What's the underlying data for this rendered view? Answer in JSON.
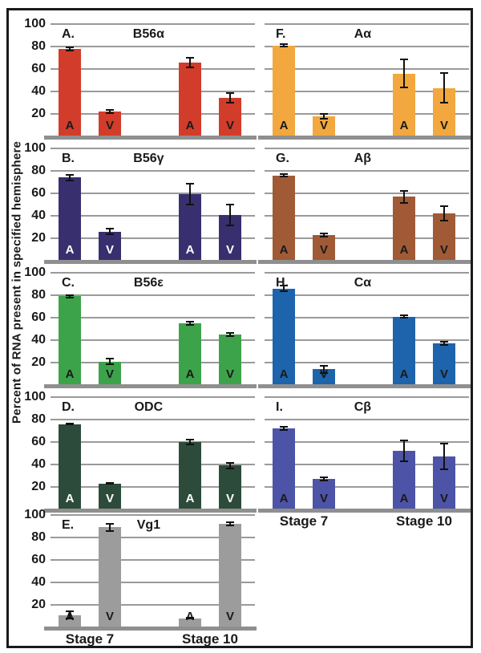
{
  "figure": {
    "ylabel": "Percent of RNA present in specified hemisphere",
    "background": "#ffffff",
    "border_color": "#1a1a1a",
    "gridline_color": "#9a9a9a",
    "baseline_color": "#8f8f8f",
    "error_bar_color": "#111111",
    "text_color": "#1a1a1a"
  },
  "chart_data": {
    "type": "bar",
    "title": "Percent of RNA present in specified hemisphere",
    "ylabel": "Percent of RNA present in specified hemisphere",
    "ylim": [
      0,
      100
    ],
    "y_ticks": [
      100,
      80,
      60,
      40,
      20
    ],
    "grid": true,
    "x_groups": [
      "Stage 7",
      "Stage 10"
    ],
    "bar_labels": [
      "A",
      "V",
      "A",
      "V"
    ],
    "categories": [
      "Stage 7 A",
      "Stage 7 V",
      "Stage 10 A",
      "Stage 10 V"
    ],
    "panels": [
      {
        "letter": "A.",
        "title": "B56α",
        "color": "#d23c2a",
        "bar_label_color": "#1a1a1a",
        "column": 0,
        "row": 0,
        "values": [
          78,
          22,
          66,
          34
        ],
        "errors": [
          2,
          2,
          5,
          5
        ],
        "show_y_ticks": true,
        "show_stage_labels": false
      },
      {
        "letter": "B.",
        "title": "B56γ",
        "color": "#38306e",
        "bar_label_color": "#ffffff",
        "column": 0,
        "row": 1,
        "values": [
          74,
          26,
          59,
          41
        ],
        "errors": [
          3,
          3,
          10,
          10
        ],
        "show_y_ticks": true,
        "show_stage_labels": false
      },
      {
        "letter": "C.",
        "title": "B56ε",
        "color": "#3da34a",
        "bar_label_color": "#1a1a1a",
        "column": 0,
        "row": 2,
        "values": [
          79,
          21,
          55,
          45
        ],
        "errors": [
          2,
          3,
          2,
          2
        ],
        "show_y_ticks": true,
        "show_stage_labels": false
      },
      {
        "letter": "D.",
        "title": "ODC",
        "color": "#2d4b3a",
        "bar_label_color": "#ffffff",
        "column": 0,
        "row": 3,
        "values": [
          76,
          23,
          60,
          39
        ],
        "errors": [
          1,
          1,
          3,
          3
        ],
        "show_y_ticks": true,
        "show_stage_labels": false
      },
      {
        "letter": "E.",
        "title": "Vg1",
        "color": "#9c9c9c",
        "bar_label_color": "#1a1a1a",
        "column": 0,
        "row": 4,
        "values": [
          11,
          89,
          8,
          92
        ],
        "errors": [
          4,
          4,
          1,
          2
        ],
        "show_y_ticks": true,
        "show_stage_labels": true
      },
      {
        "letter": "F.",
        "title": "Aα",
        "color": "#f2a83e",
        "bar_label_color": "#1a1a1a",
        "column": 1,
        "row": 0,
        "values": [
          81,
          18,
          56,
          43
        ],
        "errors": [
          2,
          3,
          13,
          14
        ],
        "show_y_ticks": false,
        "show_stage_labels": false
      },
      {
        "letter": "G.",
        "title": "Aβ",
        "color": "#a05a36",
        "bar_label_color": "#1a1a1a",
        "column": 1,
        "row": 1,
        "values": [
          76,
          23,
          57,
          42
        ],
        "errors": [
          2,
          2,
          6,
          7
        ],
        "show_y_ticks": false,
        "show_stage_labels": false
      },
      {
        "letter": "H.",
        "title": "Cα",
        "color": "#1d64ac",
        "bar_label_color": "#1a1a1a",
        "column": 1,
        "row": 2,
        "values": [
          86,
          14,
          61,
          37
        ],
        "errors": [
          3,
          4,
          2,
          2
        ],
        "show_y_ticks": false,
        "show_stage_labels": false
      },
      {
        "letter": "I.",
        "title": "Cβ",
        "color": "#4d53a6",
        "bar_label_color": "#1a1a1a",
        "column": 1,
        "row": 3,
        "values": [
          72,
          27,
          52,
          47
        ],
        "errors": [
          2,
          2,
          10,
          12
        ],
        "show_y_ticks": false,
        "show_stage_labels": true
      }
    ]
  }
}
